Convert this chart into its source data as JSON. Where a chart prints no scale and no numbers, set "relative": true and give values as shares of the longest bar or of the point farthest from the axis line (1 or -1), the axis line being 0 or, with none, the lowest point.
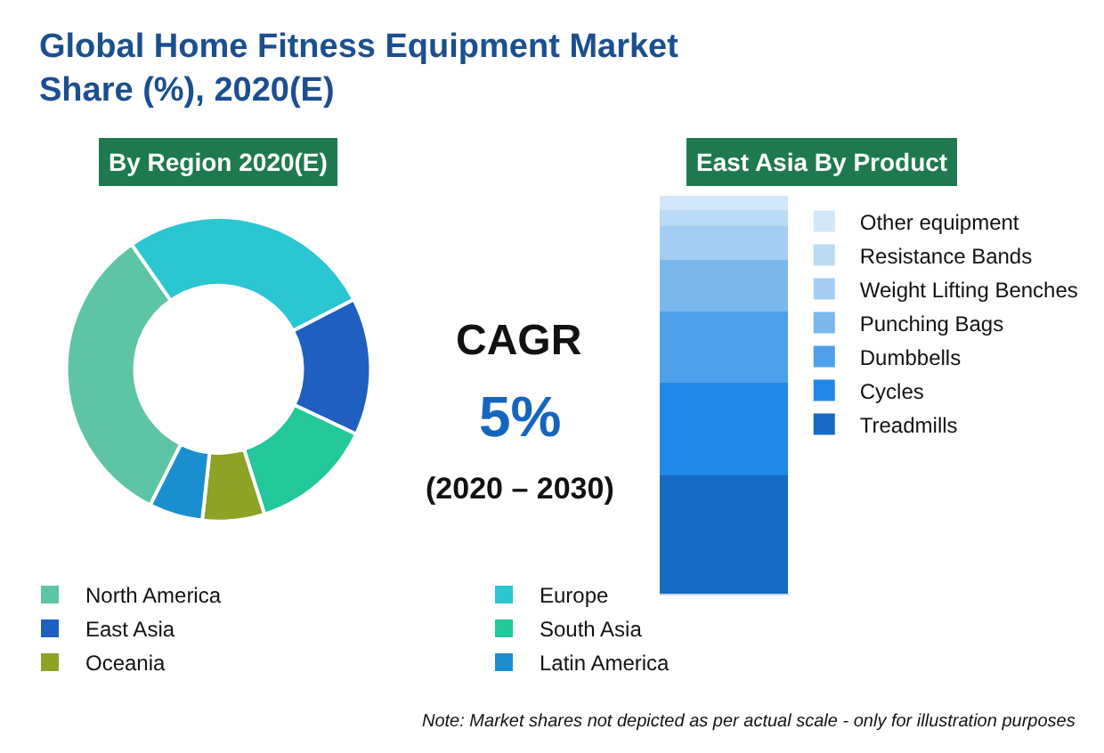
{
  "chart_data": [
    {
      "type": "donut",
      "title": "Global Home Fitness Equipment Market Share (%), 2020(E)",
      "subtitle": "By Region 2020(E)",
      "categories": [
        "North America",
        "Europe",
        "East Asia",
        "South Asia",
        "Oceania",
        "Latin America"
      ],
      "values": [
        32.9,
        27.1,
        14.6,
        13.1,
        6.6,
        5.7
      ],
      "colors": [
        "#5ec4a6",
        "#2ac6d2",
        "#1f5fbf",
        "#22c79a",
        "#8ea226",
        "#1a8fd0"
      ],
      "legend": "bottom",
      "annotations": [
        "CAGR",
        "5%",
        "(2020 – 2030)",
        "Note: Market shares not depicted as per actual scale - only for illustration purposes"
      ]
    },
    {
      "type": "bar",
      "title": "East Asia By Product",
      "stacked": true,
      "relative": true,
      "categories": [
        null
      ],
      "legend": "right",
      "series": [
        {
          "name": "Treadmills",
          "color": "#176bc4",
          "values": [
            0.3
          ]
        },
        {
          "name": "Cycles",
          "color": "#2088e6",
          "values": [
            0.233
          ]
        },
        {
          "name": "Dumbbells",
          "color": "#4fa0ea",
          "values": [
            0.177
          ]
        },
        {
          "name": "Punching Bags",
          "color": "#7ab8ee",
          "values": [
            0.131
          ]
        },
        {
          "name": "Weight Lifting Benches",
          "color": "#a4cdf3",
          "values": [
            0.083
          ]
        },
        {
          "name": "Resistance Bands",
          "color": "#b9dbf6",
          "values": [
            0.041
          ]
        },
        {
          "name": "Other equipment",
          "color": "#d2e7f9",
          "values": [
            0.035
          ]
        }
      ]
    }
  ]
}
